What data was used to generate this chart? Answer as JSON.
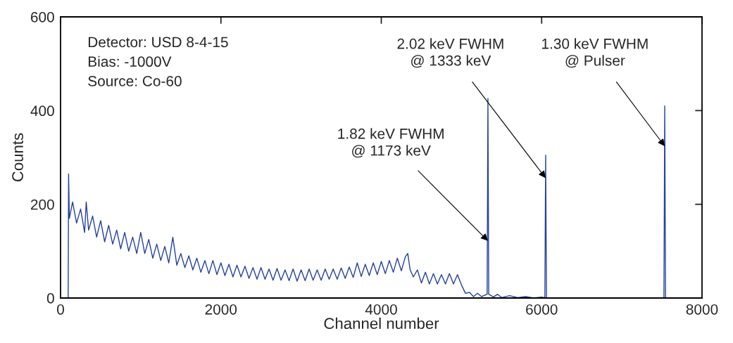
{
  "chart_data": {
    "type": "line",
    "xlabel": "Channel number",
    "ylabel": "Counts",
    "xlim": [
      0,
      8000
    ],
    "ylim": [
      0,
      600
    ],
    "xticks": [
      0,
      2000,
      4000,
      6000,
      8000
    ],
    "yticks": [
      0,
      200,
      400,
      600
    ],
    "grid": false,
    "legend": false,
    "marker": "none",
    "line_style": "solid",
    "series": [
      {
        "color": "#2541a0",
        "x": [
          80,
          95,
          100,
          110,
          150,
          200,
          250,
          300,
          320,
          350,
          400,
          450,
          500,
          550,
          600,
          650,
          700,
          750,
          800,
          850,
          900,
          950,
          1000,
          1050,
          1100,
          1150,
          1200,
          1250,
          1300,
          1350,
          1400,
          1450,
          1500,
          1550,
          1600,
          1650,
          1700,
          1750,
          1800,
          1850,
          1900,
          1950,
          2000,
          2050,
          2100,
          2150,
          2200,
          2250,
          2300,
          2350,
          2400,
          2450,
          2500,
          2550,
          2600,
          2650,
          2700,
          2750,
          2800,
          2850,
          2900,
          2950,
          3000,
          3050,
          3100,
          3150,
          3200,
          3250,
          3300,
          3350,
          3400,
          3450,
          3500,
          3550,
          3600,
          3650,
          3700,
          3750,
          3800,
          3850,
          3900,
          3950,
          4000,
          4050,
          4100,
          4150,
          4200,
          4250,
          4300,
          4330,
          4360,
          4400,
          4450,
          4500,
          4550,
          4600,
          4650,
          4700,
          4750,
          4800,
          4850,
          4900,
          4950,
          5000,
          5050,
          5100,
          5150,
          5200,
          5250,
          5320,
          5330,
          5340,
          5400,
          5450,
          5500,
          5600,
          5700,
          5800,
          5900,
          6000,
          6040,
          6050,
          6060,
          7525,
          7535,
          7545,
          8000
        ],
        "values": [
          0,
          0,
          265,
          170,
          205,
          160,
          190,
          140,
          205,
          145,
          175,
          130,
          165,
          120,
          155,
          115,
          145,
          105,
          140,
          100,
          130,
          95,
          140,
          95,
          125,
          85,
          115,
          80,
          110,
          75,
          130,
          70,
          95,
          65,
          90,
          60,
          85,
          55,
          80,
          52,
          80,
          50,
          75,
          48,
          72,
          45,
          70,
          45,
          68,
          42,
          65,
          40,
          65,
          40,
          62,
          38,
          63,
          38,
          60,
          37,
          62,
          36,
          60,
          37,
          62,
          38,
          60,
          38,
          62,
          40,
          62,
          40,
          64,
          42,
          66,
          44,
          75,
          46,
          72,
          48,
          75,
          50,
          78,
          52,
          80,
          55,
          85,
          58,
          88,
          95,
          60,
          45,
          60,
          32,
          55,
          30,
          52,
          30,
          50,
          30,
          52,
          30,
          50,
          28,
          10,
          12,
          3,
          10,
          3,
          8,
          426,
          8,
          2,
          8,
          1,
          5,
          1,
          3,
          0,
          2,
          1,
          305,
          1,
          0,
          410,
          0,
          0
        ]
      }
    ],
    "annotations": [
      "Detector: USD 8-4-15\nBias: -1000V\nSource: Co-60",
      {
        "text": "1.82 keV FWHM\n@ 1173 keV",
        "x": 5330,
        "y": 122
      },
      {
        "text": "2.02 keV FWHM\n@ 1333 keV",
        "x": 6050,
        "y": 256
      },
      {
        "text": "1.30 keV FWHM\n@ Pulser",
        "x": 7535,
        "y": 324
      }
    ]
  }
}
